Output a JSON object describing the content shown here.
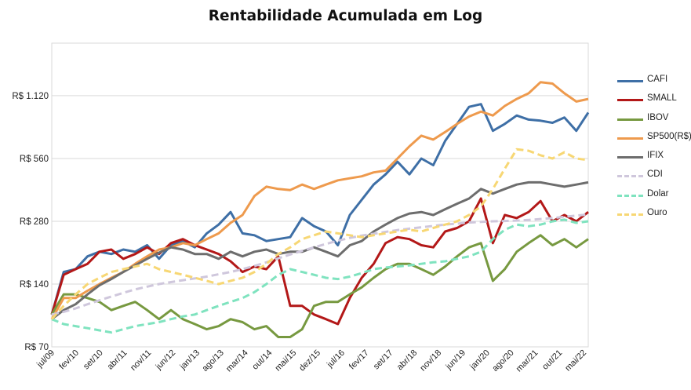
{
  "chart_data": {
    "type": "line",
    "title": "Rentabilidade Acumulada em Log",
    "y_scale": "log",
    "ylim": [
      70,
      2000
    ],
    "y_ticks": [
      70,
      140,
      280,
      560,
      1120
    ],
    "y_tick_labels": [
      "R$ 70",
      "R$ 140",
      "R$ 280",
      "R$ 560",
      "R$ 1.120"
    ],
    "x_tick_labels": [
      "jul/09",
      "fev/10",
      "set/10",
      "abr/11",
      "nov/11",
      "jun/12",
      "jan/13",
      "ago/13",
      "mar/14",
      "out/14",
      "mai/15",
      "dez/15",
      "jul/16",
      "fev/17",
      "set/17",
      "abr/18",
      "nov/18",
      "jun/19",
      "jan/20",
      "ago/20",
      "mar/21",
      "out/21",
      "mai/22"
    ],
    "grid": true,
    "legend_position": "right",
    "series": [
      {
        "name": "CAFI",
        "color": "#3e6fa6",
        "dashed": false,
        "values": [
          100,
          160,
          165,
          190,
          200,
          195,
          205,
          200,
          215,
          185,
          215,
          225,
          210,
          245,
          270,
          310,
          245,
          240,
          225,
          230,
          235,
          290,
          265,
          250,
          215,
          300,
          355,
          420,
          470,
          540,
          470,
          560,
          520,
          680,
          820,
          990,
          1020,
          760,
          820,
          900,
          860,
          850,
          830,
          880,
          760,
          930
        ]
      },
      {
        "name": "SMALL",
        "color": "#b31818",
        "dashed": false,
        "values": [
          100,
          155,
          165,
          175,
          200,
          205,
          185,
          195,
          210,
          195,
          220,
          230,
          215,
          205,
          195,
          180,
          160,
          170,
          165,
          190,
          110,
          110,
          100,
          95,
          90,
          120,
          150,
          175,
          220,
          235,
          230,
          215,
          210,
          250,
          260,
          280,
          360,
          220,
          300,
          290,
          310,
          350,
          280,
          300,
          280,
          310
        ]
      },
      {
        "name": "IBOV",
        "color": "#779940",
        "dashed": false,
        "values": [
          100,
          125,
          125,
          120,
          115,
          105,
          110,
          115,
          105,
          95,
          105,
          95,
          90,
          85,
          88,
          95,
          92,
          85,
          88,
          78,
          78,
          85,
          110,
          115,
          115,
          125,
          135,
          150,
          165,
          175,
          175,
          165,
          155,
          170,
          190,
          210,
          220,
          145,
          165,
          200,
          220,
          240,
          215,
          230,
          210,
          230
        ]
      },
      {
        "name": "SP500(R$)",
        "color": "#ee9a4d",
        "dashed": false,
        "values": [
          95,
          120,
          120,
          130,
          140,
          150,
          160,
          175,
          190,
          205,
          210,
          220,
          215,
          230,
          245,
          275,
          300,
          370,
          410,
          400,
          395,
          420,
          400,
          420,
          440,
          450,
          460,
          480,
          490,
          560,
          640,
          720,
          690,
          750,
          820,
          890,
          940,
          900,
          1000,
          1080,
          1150,
          1300,
          1280,
          1150,
          1050,
          1080
        ]
      },
      {
        "name": "IFIX",
        "color": "#6d6d6d",
        "dashed": false,
        "values": [
          95,
          105,
          112,
          125,
          138,
          148,
          160,
          172,
          185,
          198,
          210,
          205,
          195,
          195,
          185,
          200,
          190,
          200,
          205,
          195,
          200,
          200,
          210,
          200,
          190,
          215,
          225,
          250,
          270,
          290,
          305,
          310,
          300,
          320,
          340,
          360,
          400,
          380,
          400,
          420,
          430,
          430,
          420,
          410,
          420,
          430
        ]
      },
      {
        "name": "CDI",
        "color": "#cfc7dc",
        "dashed": true,
        "values": [
          100,
          103,
          107,
          112,
          117,
          122,
          127,
          132,
          136,
          140,
          143,
          146,
          149,
          152,
          156,
          160,
          165,
          171,
          178,
          186,
          194,
          202,
          210,
          218,
          226,
          233,
          239,
          244,
          249,
          254,
          258,
          262,
          266,
          270,
          273,
          276,
          278,
          280,
          281,
          282,
          284,
          287,
          290,
          294,
          298,
          302
        ]
      },
      {
        "name": "Dolar",
        "color": "#7fe3bf",
        "dashed": true,
        "values": [
          95,
          90,
          88,
          86,
          84,
          82,
          85,
          88,
          90,
          92,
          95,
          98,
          100,
          105,
          110,
          115,
          120,
          128,
          140,
          155,
          165,
          160,
          155,
          150,
          148,
          152,
          158,
          165,
          168,
          170,
          172,
          175,
          178,
          180,
          185,
          190,
          200,
          230,
          255,
          270,
          265,
          270,
          280,
          285,
          275,
          280
        ]
      },
      {
        "name": "Ouro",
        "color": "#f7d774",
        "dashed": true,
        "values": [
          95,
          110,
          125,
          140,
          150,
          160,
          165,
          170,
          175,
          165,
          160,
          155,
          150,
          145,
          140,
          145,
          150,
          160,
          175,
          195,
          210,
          230,
          240,
          250,
          245,
          240,
          235,
          240,
          245,
          250,
          255,
          250,
          260,
          270,
          280,
          300,
          330,
          400,
          500,
          620,
          610,
          580,
          560,
          600,
          560,
          550
        ]
      }
    ]
  }
}
